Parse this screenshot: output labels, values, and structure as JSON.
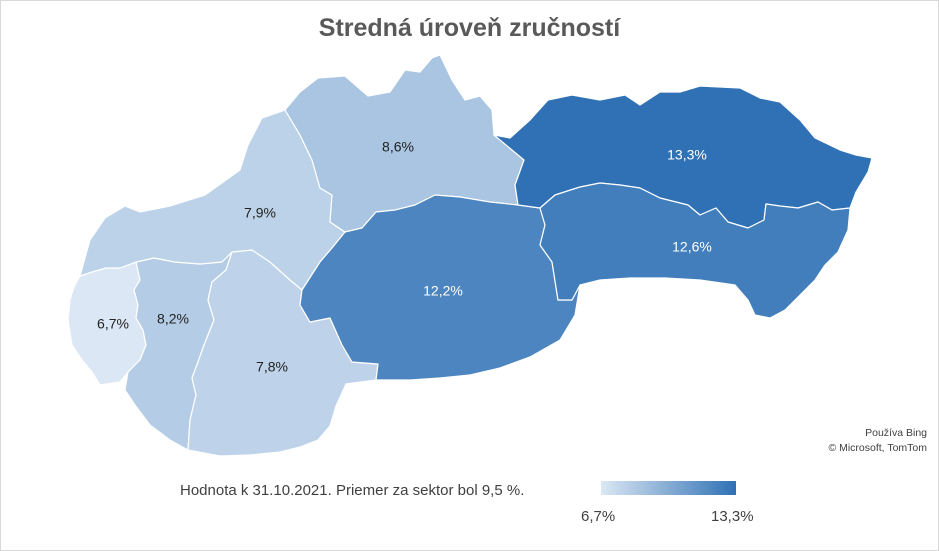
{
  "title": "Stredná úroveň zručností",
  "attribution": {
    "line1": "Používa Bing",
    "line2": "© Microsoft, TomTom"
  },
  "footnote": "Hodnota k 31.10.2021. Priemer za sektor bol 9,5 %.",
  "legend": {
    "min_label": "6,7%",
    "max_label": "13,3%",
    "min_value": 6.7,
    "max_value": 13.3,
    "min_color": "#dbe7f4",
    "max_color": "#2f71b4"
  },
  "regions": [
    {
      "key": "bratislava",
      "label": "6,7%",
      "value": 6.7
    },
    {
      "key": "trnava",
      "label": "8,2%",
      "value": 8.2
    },
    {
      "key": "nitra",
      "label": "7,8%",
      "value": 7.8
    },
    {
      "key": "trencin",
      "label": "7,9%",
      "value": 7.9
    },
    {
      "key": "zilina",
      "label": "8,6%",
      "value": 8.6
    },
    {
      "key": "banska-bystrica",
      "label": "12,2%",
      "value": 12.2
    },
    {
      "key": "presov",
      "label": "13,3%",
      "value": 13.3
    },
    {
      "key": "kosice",
      "label": "12,6%",
      "value": 12.6
    }
  ]
}
